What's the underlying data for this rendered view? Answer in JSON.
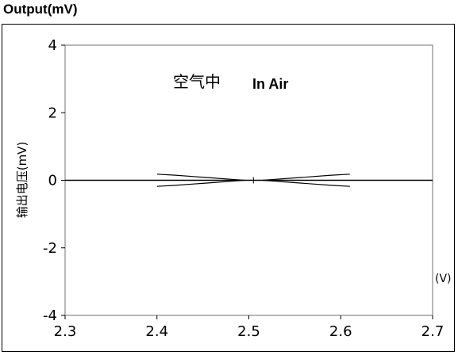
{
  "header": {
    "output_label": "Output(mV)"
  },
  "chart_data": {
    "type": "line",
    "title": "",
    "ylabel": "输出电压(mV)",
    "xlabel_unit": "(V)",
    "xlim": [
      2.3,
      2.7
    ],
    "ylim": [
      -4,
      4
    ],
    "x_ticks": [
      "2.3",
      "2.4",
      "2.5",
      "2.6",
      "2.7"
    ],
    "y_ticks": [
      "4",
      "2",
      "0",
      "-2",
      "-4"
    ],
    "grid": false,
    "annotation_cn": "空气中",
    "annotation_en": "In Air",
    "series": [
      {
        "x": [
          2.3,
          2.7
        ],
        "y": [
          0.0,
          0.0
        ]
      },
      {
        "x": [
          2.4,
          2.42,
          2.44,
          2.46,
          2.48,
          2.495
        ],
        "y": [
          0.18,
          0.15,
          0.11,
          0.07,
          0.03,
          0.0
        ]
      },
      {
        "x": [
          2.4,
          2.42,
          2.44,
          2.46,
          2.48,
          2.495
        ],
        "y": [
          -0.18,
          -0.15,
          -0.11,
          -0.07,
          -0.03,
          0.0
        ]
      },
      {
        "x": [
          2.515,
          2.53,
          2.55,
          2.57,
          2.59,
          2.61
        ],
        "y": [
          0.0,
          0.03,
          0.07,
          0.11,
          0.15,
          0.18
        ]
      },
      {
        "x": [
          2.515,
          2.53,
          2.55,
          2.57,
          2.59,
          2.61
        ],
        "y": [
          0.0,
          -0.03,
          -0.07,
          -0.11,
          -0.15,
          -0.18
        ]
      }
    ]
  }
}
